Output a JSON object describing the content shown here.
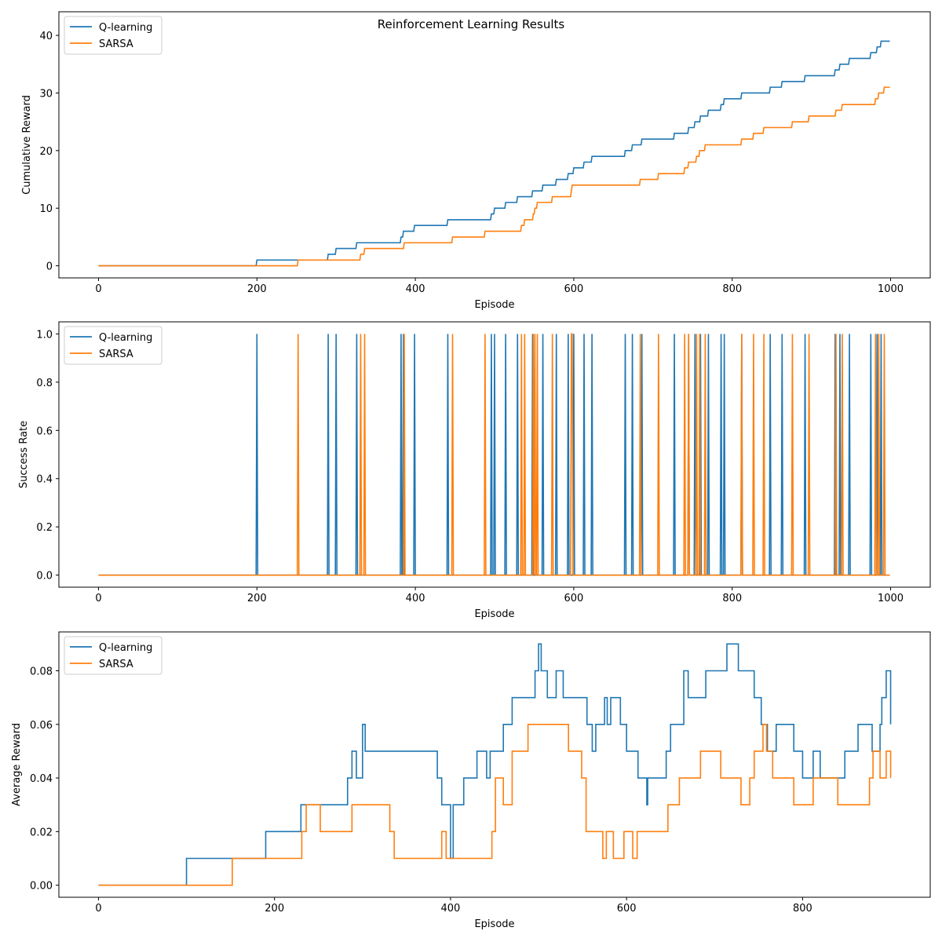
{
  "figure_title": "Reinforcement Learning Results",
  "colors": {
    "q": "#1f77b4",
    "s": "#ff7f0e"
  },
  "chart_data": [
    {
      "type": "line",
      "title": "",
      "xlabel": "Episode",
      "ylabel": "Cumulative Reward",
      "xlim": [
        -50,
        1050
      ],
      "ylim": [
        -2.1,
        44.1
      ],
      "xticks": [
        0,
        200,
        400,
        600,
        800,
        1000
      ],
      "yticks": [
        0,
        10,
        20,
        30,
        40
      ],
      "ytick_labels": [
        "0",
        "10",
        "20",
        "30",
        "40"
      ],
      "grid": false,
      "legend": "top-left",
      "series": [
        {
          "name": "Q-learning",
          "color": "#1f77b4",
          "success_episodes": [
            200,
            290,
            300,
            326,
            382,
            385,
            399,
            441,
            496,
            500,
            514,
            529,
            548,
            561,
            578,
            593,
            600,
            613,
            623,
            665,
            674,
            686,
            727,
            745,
            753,
            760,
            770,
            786,
            790,
            812,
            848,
            863,
            892,
            930,
            936,
            948,
            975,
            983,
            988
          ]
        },
        {
          "name": "SARSA",
          "color": "#ff7f0e",
          "success_episodes": [
            252,
            331,
            336,
            386,
            447,
            488,
            534,
            538,
            549,
            551,
            554,
            573,
            597,
            598,
            684,
            707,
            740,
            745,
            755,
            759,
            766,
            812,
            827,
            840,
            876,
            897,
            931,
            939,
            981,
            985,
            992
          ]
        }
      ]
    },
    {
      "type": "line",
      "title": "",
      "xlabel": "Episode",
      "ylabel": "Success Rate",
      "xlim": [
        -50,
        1050
      ],
      "ylim": [
        -0.05,
        1.05
      ],
      "xticks": [
        0,
        200,
        400,
        600,
        800,
        1000
      ],
      "yticks": [
        0.0,
        0.2,
        0.4,
        0.6,
        0.8,
        1.0
      ],
      "ytick_labels": [
        "0.0",
        "0.2",
        "0.4",
        "0.6",
        "0.8",
        "1.0"
      ],
      "grid": false,
      "legend": "top-left",
      "series": [
        {
          "name": "Q-learning",
          "color": "#1f77b4",
          "success_episodes": [
            200,
            290,
            300,
            326,
            382,
            385,
            399,
            441,
            496,
            500,
            514,
            529,
            548,
            561,
            578,
            593,
            600,
            613,
            623,
            665,
            674,
            686,
            727,
            745,
            753,
            760,
            770,
            786,
            790,
            812,
            848,
            863,
            892,
            930,
            936,
            948,
            975,
            983,
            988
          ]
        },
        {
          "name": "SARSA",
          "color": "#ff7f0e",
          "success_episodes": [
            252,
            331,
            336,
            386,
            447,
            488,
            534,
            538,
            549,
            551,
            554,
            573,
            597,
            598,
            684,
            707,
            740,
            745,
            755,
            759,
            766,
            812,
            827,
            840,
            876,
            897,
            931,
            939,
            981,
            985,
            992
          ]
        }
      ]
    },
    {
      "type": "line",
      "title": "",
      "xlabel": "Episode",
      "ylabel": "Average Reward",
      "xlim": [
        -45,
        945
      ],
      "ylim": [
        -0.0045,
        0.0945
      ],
      "xticks": [
        0,
        200,
        400,
        600,
        800
      ],
      "yticks": [
        0.0,
        0.02,
        0.04,
        0.06,
        0.08
      ],
      "ytick_labels": [
        "0.00",
        "0.02",
        "0.04",
        "0.06",
        "0.08"
      ],
      "grid": false,
      "legend": "top-left",
      "series": [
        {
          "name": "Q-learning",
          "color": "#1f77b4",
          "x": [
            0,
            100,
            190,
            200,
            230,
            283,
            288,
            293,
            300,
            303,
            336,
            382,
            385,
            390,
            400,
            403,
            415,
            430,
            441,
            445,
            460,
            470,
            480,
            496,
            500,
            503,
            510,
            520,
            528,
            540,
            555,
            561,
            565,
            575,
            578,
            582,
            593,
            600,
            613,
            620,
            623,
            624,
            630,
            645,
            650,
            660,
            665,
            670,
            676,
            690,
            714,
            727,
            745,
            753,
            760,
            770,
            790,
            800,
            812,
            820,
            828,
            848,
            863,
            865,
            879,
            888,
            890,
            895,
            900
          ],
          "y": [
            0,
            0.01,
            0.02,
            0.02,
            0.03,
            0.04,
            0.05,
            0.04,
            0.06,
            0.05,
            0.05,
            0.05,
            0.04,
            0.03,
            0.01,
            0.03,
            0.04,
            0.05,
            0.04,
            0.05,
            0.06,
            0.07,
            0.07,
            0.08,
            0.09,
            0.08,
            0.07,
            0.08,
            0.07,
            0.07,
            0.06,
            0.05,
            0.06,
            0.07,
            0.06,
            0.07,
            0.06,
            0.05,
            0.04,
            0.04,
            0.03,
            0.04,
            0.04,
            0.05,
            0.06,
            0.06,
            0.08,
            0.07,
            0.07,
            0.08,
            0.09,
            0.08,
            0.07,
            0.06,
            0.05,
            0.06,
            0.05,
            0.04,
            0.05,
            0.04,
            0.04,
            0.05,
            0.06,
            0.06,
            0.05,
            0.06,
            0.07,
            0.08,
            0.06
          ]
        },
        {
          "name": "SARSA",
          "color": "#ff7f0e",
          "x": [
            0,
            152,
            231,
            236,
            252,
            288,
            331,
            336,
            386,
            390,
            395,
            447,
            451,
            460,
            470,
            488,
            534,
            549,
            554,
            573,
            577,
            585,
            597,
            607,
            612,
            647,
            660,
            684,
            707,
            730,
            740,
            745,
            755,
            759,
            766,
            775,
            790,
            812,
            827,
            840,
            876,
            880,
            888,
            895,
            900
          ],
          "y": [
            0,
            0.01,
            0.02,
            0.03,
            0.02,
            0.03,
            0.02,
            0.01,
            0.01,
            0.02,
            0.01,
            0.02,
            0.04,
            0.03,
            0.05,
            0.06,
            0.05,
            0.04,
            0.02,
            0.01,
            0.02,
            0.01,
            0.02,
            0.01,
            0.02,
            0.03,
            0.04,
            0.05,
            0.04,
            0.03,
            0.04,
            0.05,
            0.06,
            0.05,
            0.04,
            0.04,
            0.03,
            0.04,
            0.04,
            0.03,
            0.04,
            0.05,
            0.04,
            0.05,
            0.04
          ]
        }
      ]
    }
  ]
}
